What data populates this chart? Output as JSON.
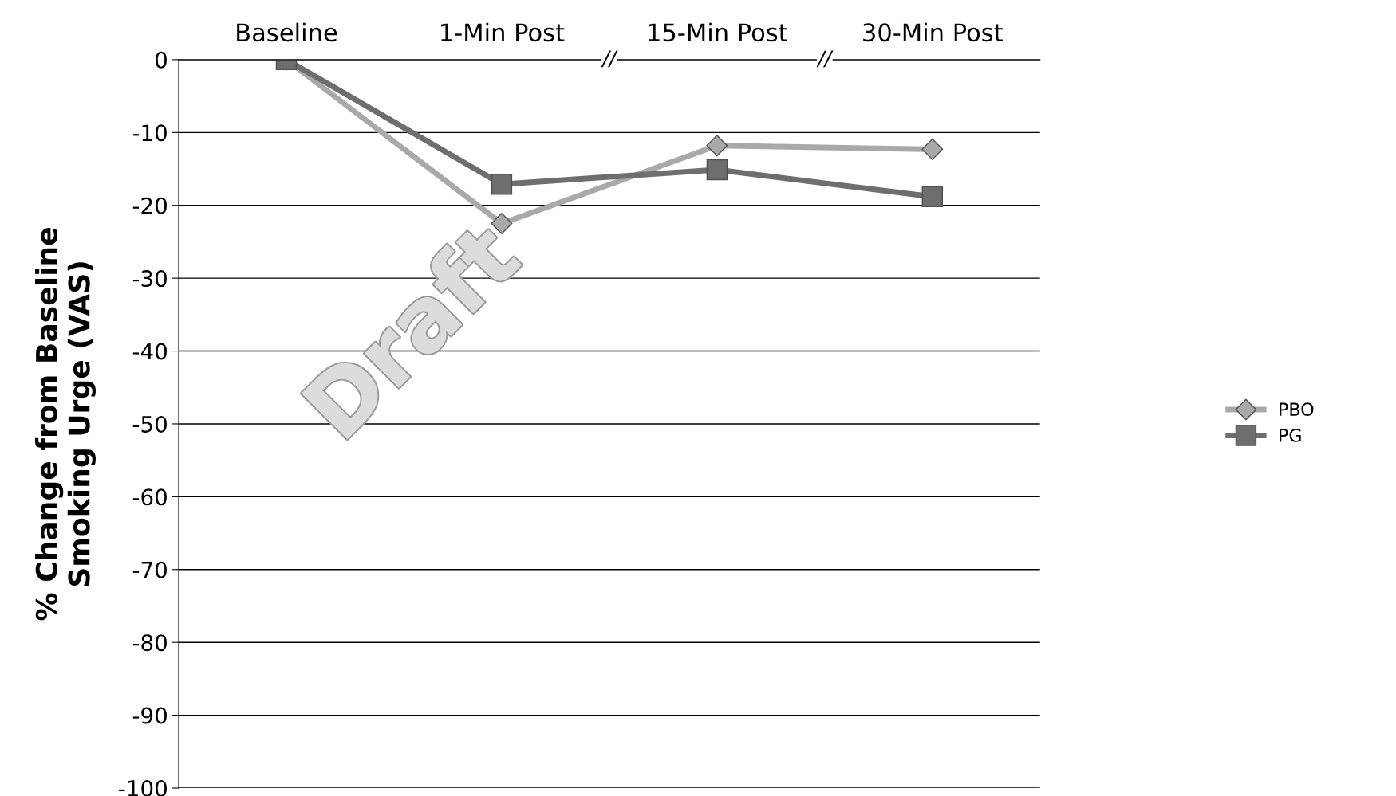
{
  "chart_data": {
    "type": "line",
    "ylabel": "% Change from Baseline\nSmoking Urge (VAS)",
    "categories": [
      "Baseline",
      "1-Min Post",
      "15-Min Post",
      "30-Min Post"
    ],
    "series": [
      {
        "name": "PBO",
        "color": "#a9a9a9",
        "marker": "diamond",
        "values": [
          0,
          -22.5,
          -11.8,
          -12.3
        ]
      },
      {
        "name": "PG",
        "color": "#6e6e6e",
        "marker": "square",
        "values": [
          0,
          -17.1,
          -15.1,
          -18.8
        ]
      }
    ],
    "ylim": [
      -100,
      0
    ],
    "yticks": [
      0,
      -10,
      -20,
      -30,
      -40,
      -50,
      -60,
      -70,
      -80,
      -90,
      -100
    ],
    "grid": "y",
    "legend": "right",
    "annotations": [
      "//",
      "//",
      "Draft"
    ]
  }
}
